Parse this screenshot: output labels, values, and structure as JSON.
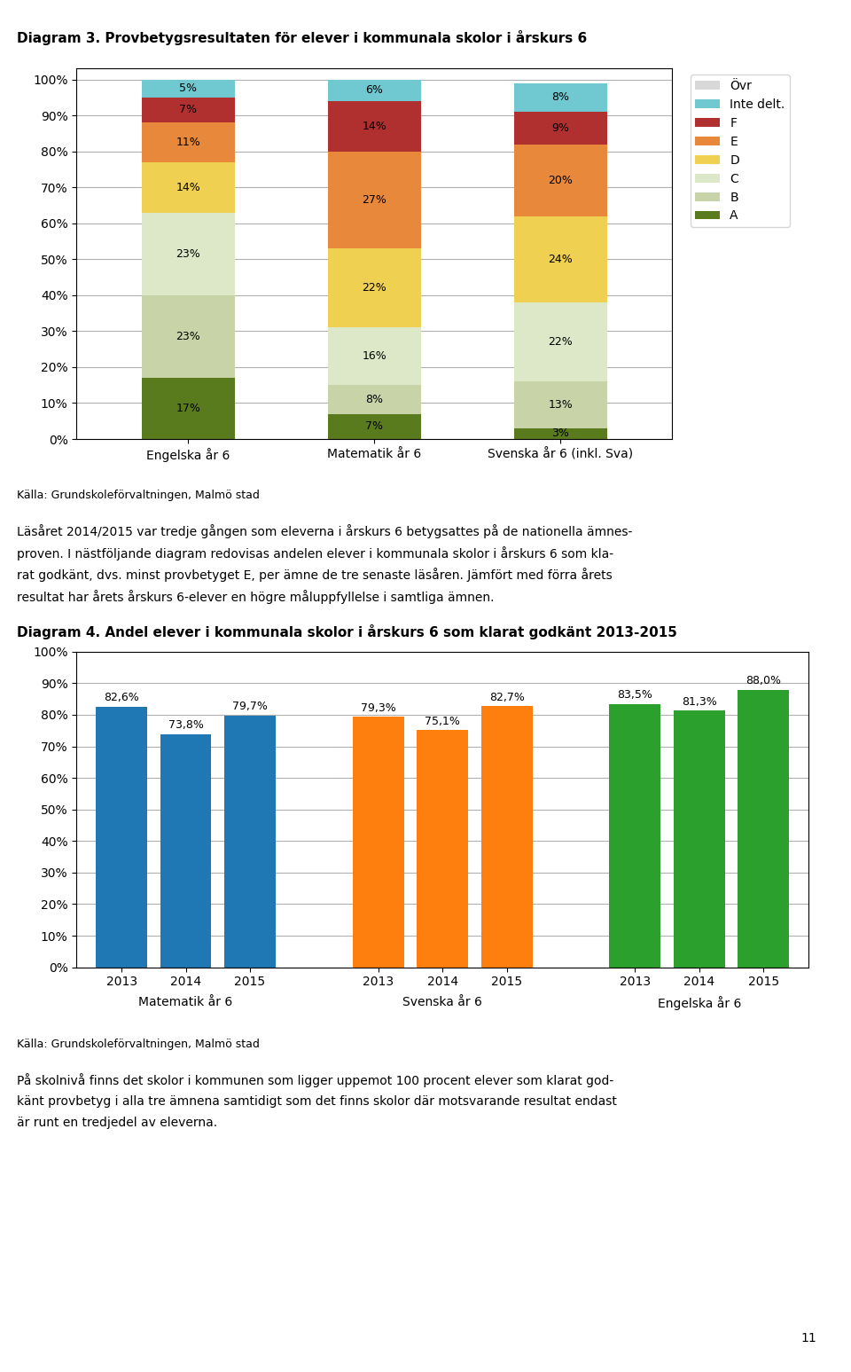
{
  "chart_data": [
    {
      "type": "bar",
      "stacked": true,
      "title": "Diagram 3. Provbetygsresultaten för elever i kommunala skolor i årskurs 6",
      "source": "Källa: Grundskoleförvaltningen, Malmö stad",
      "categories": [
        "Engelska år 6",
        "Matematik år 6",
        "Svenska år 6 (inkl. Sva)"
      ],
      "series": [
        {
          "name": "A",
          "color": "#5a7a1e",
          "values": [
            17,
            7,
            3
          ],
          "value_labels": [
            "17%",
            "7%",
            "3%"
          ]
        },
        {
          "name": "B",
          "color": "#c8d4a8",
          "values": [
            23,
            8,
            13
          ],
          "value_labels": [
            "23%",
            "8%",
            "13%"
          ]
        },
        {
          "name": "C",
          "color": "#dce8c8",
          "values": [
            23,
            16,
            22
          ],
          "value_labels": [
            "23%",
            "16%",
            "22%"
          ]
        },
        {
          "name": "D",
          "color": "#f0d050",
          "values": [
            14,
            22,
            24
          ],
          "value_labels": [
            "14%",
            "22%",
            "24%"
          ]
        },
        {
          "name": "E",
          "color": "#e8883a",
          "values": [
            11,
            27,
            20
          ],
          "value_labels": [
            "11%",
            "27%",
            "20%"
          ]
        },
        {
          "name": "F",
          "color": "#b03030",
          "values": [
            7,
            14,
            9
          ],
          "value_labels": [
            "7%",
            "14%",
            "9%"
          ]
        },
        {
          "name": "Inte delt.",
          "color": "#70c8d0",
          "values": [
            5,
            6,
            8
          ],
          "value_labels": [
            "5%",
            "6%",
            "8%"
          ]
        },
        {
          "name": "Övr",
          "color": "#d8d8d8",
          "values": [
            0,
            0,
            0
          ],
          "value_labels": [
            null,
            null,
            null
          ]
        }
      ],
      "ylim": [
        0,
        103
      ],
      "yticks": [
        {
          "value": 0,
          "label": "0%"
        },
        {
          "value": 10,
          "label": "10%"
        },
        {
          "value": 20,
          "label": "20%"
        },
        {
          "value": 30,
          "label": "30%"
        },
        {
          "value": 40,
          "label": "40%"
        },
        {
          "value": 50,
          "label": "50%"
        },
        {
          "value": 60,
          "label": "60%"
        },
        {
          "value": 70,
          "label": "70%"
        },
        {
          "value": 80,
          "label": "80%"
        },
        {
          "value": 90,
          "label": "90%"
        },
        {
          "value": 100,
          "label": "100%"
        }
      ],
      "grid": true,
      "data_labels": true,
      "legend": "upper left"
    },
    {
      "type": "bar",
      "title": "Diagram 4. Andel elever i kommunala skolor i årskurs 6 som klarat godkänt 2013-2015",
      "source": "Källa: Grundskoleförvaltningen, Malmö stad",
      "categories": [
        "2013",
        "2014",
        "2015"
      ],
      "series": [
        {
          "name": "Matematik år 6",
          "values": [
            82.6,
            73.8,
            79.7
          ],
          "value_labels": [
            "82,6%",
            "73,8%",
            "79,7%"
          ]
        },
        {
          "name": "Svenska år 6",
          "values": [
            79.3,
            75.1,
            82.7
          ],
          "value_labels": [
            "79,3%",
            "75,1%",
            "82,7%"
          ]
        },
        {
          "name": "Engelska år 6",
          "values": [
            83.5,
            81.3,
            88.0
          ],
          "value_labels": [
            "83,5%",
            "81,3%",
            "88,0%"
          ]
        }
      ],
      "ylim": [
        0,
        100
      ],
      "yticks": [
        {
          "value": 0,
          "label": "0%"
        },
        {
          "value": 10,
          "label": "10%"
        },
        {
          "value": 20,
          "label": "20%"
        },
        {
          "value": 30,
          "label": "30%"
        },
        {
          "value": 40,
          "label": "40%"
        },
        {
          "value": 50,
          "label": "50%"
        },
        {
          "value": 60,
          "label": "60%"
        },
        {
          "value": 70,
          "label": "70%"
        },
        {
          "value": 80,
          "label": "80%"
        },
        {
          "value": 90,
          "label": "90%"
        },
        {
          "value": 100,
          "label": "100%"
        }
      ],
      "grid": true,
      "data_labels": true
    }
  ],
  "text_blocks": [
    [
      "Läsåret 2014/2015 var tredje gången som eleverna i årskurs 6 betygsattes på de nationella ämnes-",
      "proven. I nästföljande diagram redovisas andelen elever i kommunala skolor i årskurs 6 som kla-",
      "rat godkänt, dvs. minst provbetyget E, per ämne de tre senaste läsåren. Jämfört med förra årets",
      "resultat har årets årskurs 6-elever en högre måluppfyllelse i samtliga ämnen."
    ],
    [
      "På skolnivå finns det skolor i kommunen som ligger uppemot 100 procent elever som klarat god-",
      "känt provbetyg i alla tre ämnena samtidigt som det finns skolor där motsvarande resultat endast",
      "är runt en tredjedel av eleverna."
    ]
  ],
  "page_number": "11"
}
